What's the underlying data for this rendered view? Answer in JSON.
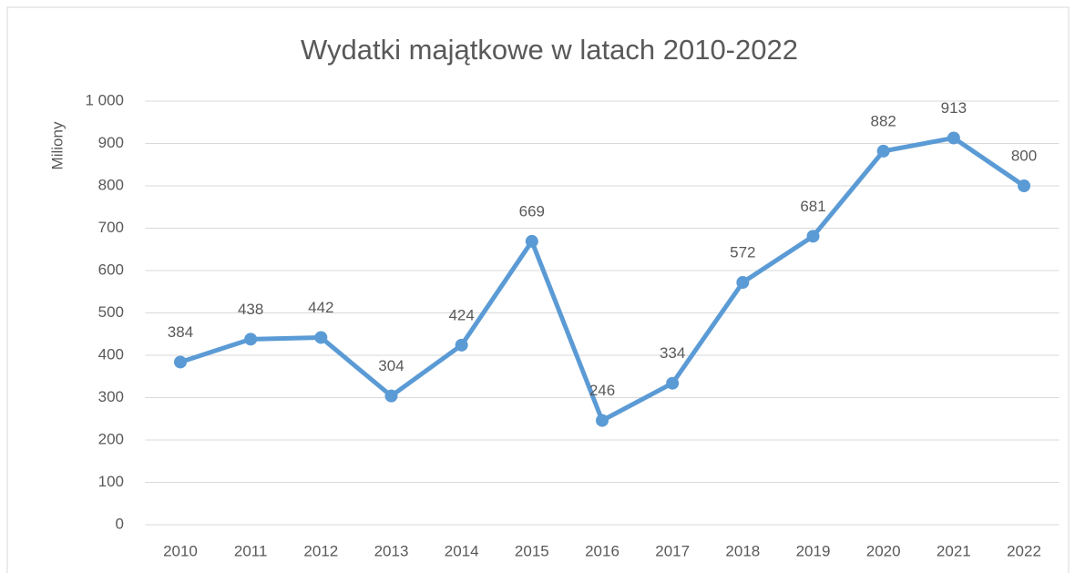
{
  "chart_data": {
    "type": "line",
    "title": "Wydatki majątkowe w latach 2010-2022",
    "y_label": "Miliony",
    "categories": [
      "2010",
      "2011",
      "2012",
      "2013",
      "2014",
      "2015",
      "2016",
      "2017",
      "2018",
      "2019",
      "2020",
      "2021",
      "2022"
    ],
    "series": [
      {
        "name": "Wydatki majątkowe",
        "color": "#5b9bd5",
        "values": [
          384,
          438,
          442,
          304,
          424,
          669,
          246,
          334,
          572,
          681,
          882,
          913,
          800
        ]
      }
    ],
    "ylim": [
      0,
      1000
    ],
    "yticks": [
      0,
      100,
      200,
      300,
      400,
      500,
      600,
      700,
      800,
      900,
      {
        "value": 1000,
        "label": "1 000"
      }
    ],
    "grid": true,
    "data_labels": true
  }
}
